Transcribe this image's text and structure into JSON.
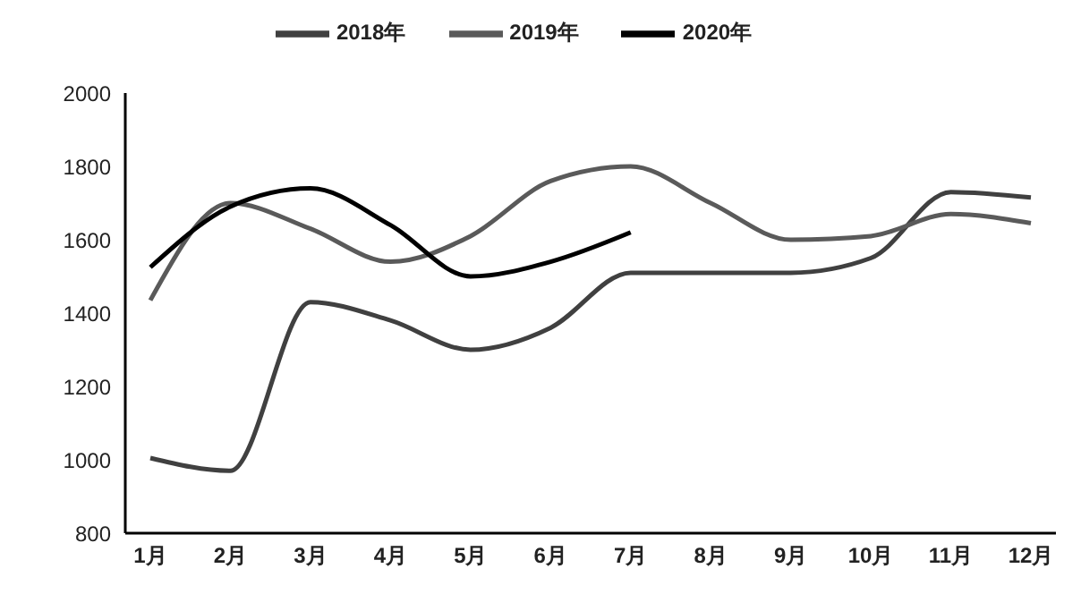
{
  "chart_data": {
    "type": "line",
    "categories": [
      "1月",
      "2月",
      "3月",
      "4月",
      "5月",
      "6月",
      "7月",
      "8月",
      "9月",
      "10月",
      "11月",
      "12月"
    ],
    "series": [
      {
        "name": "2018年",
        "color": "#404040",
        "values": [
          1005,
          970,
          1430,
          1380,
          1300,
          1360,
          1510,
          1510,
          1510,
          1550,
          1730,
          1715
        ]
      },
      {
        "name": "2019年",
        "color": "#5a5a5a",
        "values": [
          1435,
          1700,
          1630,
          1540,
          1610,
          1760,
          1800,
          1700,
          1600,
          1610,
          1670,
          1645
        ]
      },
      {
        "name": "2020年",
        "color": "#000000",
        "values": [
          1525,
          1690,
          1740,
          1640,
          1500,
          1540,
          1620,
          null,
          null,
          null,
          null,
          null
        ]
      }
    ],
    "ylim": [
      800,
      2000
    ],
    "yticks": [
      800,
      1000,
      1200,
      1400,
      1600,
      1800,
      2000
    ],
    "grid": false,
    "legend": "top",
    "marker": "none",
    "line_style": "solid"
  }
}
